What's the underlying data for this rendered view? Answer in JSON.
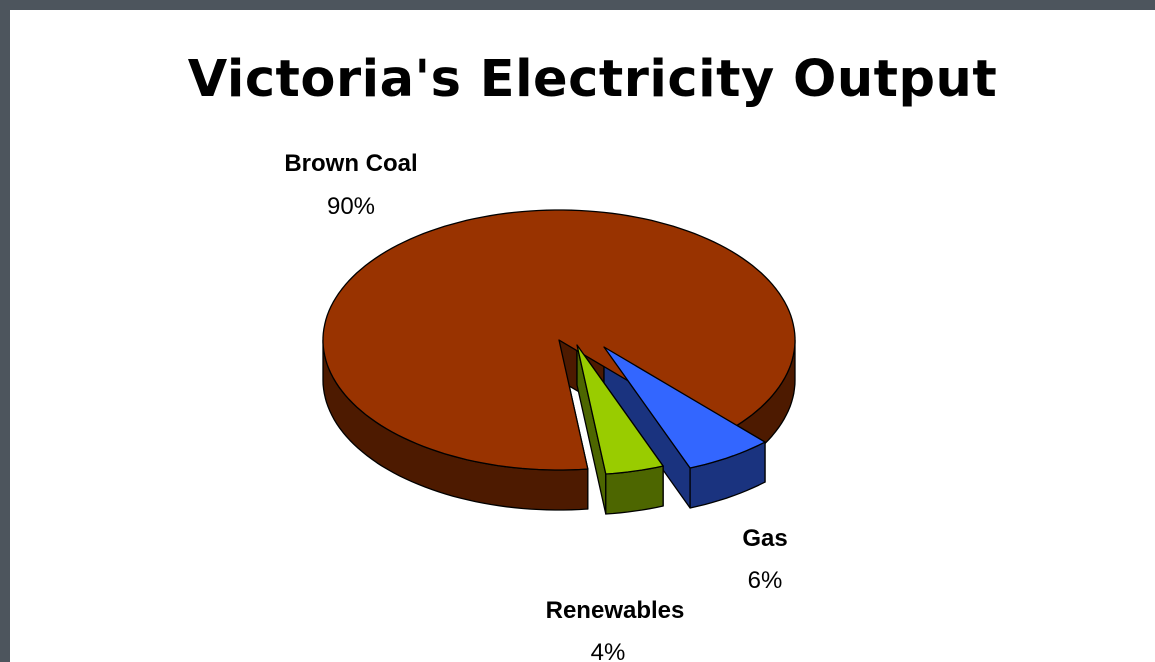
{
  "chart_data": {
    "type": "pie",
    "title": "Victoria's Electricity Output",
    "three_d": true,
    "exploded": true,
    "legend": "none",
    "slices": [
      {
        "label": "Brown Coal",
        "value": 90,
        "display": "90%",
        "color": "#993300",
        "side_color": "#4d1a00"
      },
      {
        "label": "Gas",
        "value": 6,
        "display": "6%",
        "color": "#3366ff",
        "side_color": "#1a337f"
      },
      {
        "label": "Renewables",
        "value": 4,
        "display": "4%",
        "color": "#99cc00",
        "side_color": "#4d6600"
      }
    ]
  }
}
